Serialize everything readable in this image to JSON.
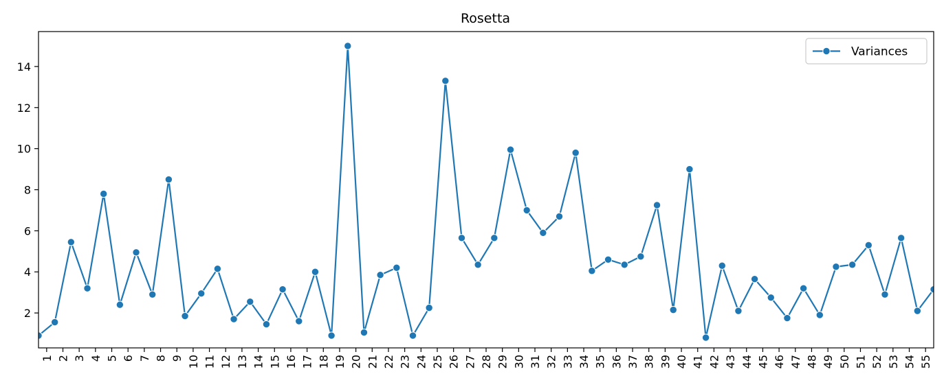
{
  "chart_data": {
    "type": "line",
    "title": "Rosetta",
    "xlabel": "",
    "ylabel": "",
    "categories": [
      "1",
      "2",
      "3",
      "4",
      "5",
      "6",
      "7",
      "8",
      "9",
      "10",
      "11",
      "12",
      "13",
      "14",
      "15",
      "16",
      "17",
      "18",
      "19",
      "20",
      "21",
      "22",
      "23",
      "24",
      "25",
      "26",
      "27",
      "28",
      "29",
      "30",
      "31",
      "32",
      "33",
      "34",
      "35",
      "36",
      "37",
      "38",
      "39",
      "40",
      "41",
      "42",
      "43",
      "44",
      "45",
      "46",
      "47",
      "48",
      "49",
      "50",
      "51",
      "52",
      "53",
      "54",
      "55"
    ],
    "series": [
      {
        "name": "Variances",
        "color": "#1f77b4",
        "marker": "circle",
        "x": [
          0,
          1,
          2,
          3,
          4,
          5,
          6,
          7,
          8,
          9,
          10,
          11,
          12,
          13,
          14,
          15,
          16,
          17,
          18,
          19,
          20,
          21,
          22,
          23,
          24,
          25,
          26,
          27,
          28,
          29,
          30,
          31,
          32,
          33,
          34,
          35,
          36,
          37,
          38,
          39,
          40,
          41,
          42,
          43,
          44,
          45,
          46,
          47,
          48,
          49,
          50,
          51,
          52,
          53,
          54,
          55
        ],
        "values": [
          0.9,
          1.55,
          5.45,
          3.2,
          7.8,
          2.4,
          4.95,
          2.9,
          8.5,
          1.85,
          2.95,
          4.15,
          1.7,
          2.55,
          1.45,
          3.15,
          1.6,
          4.0,
          0.9,
          15.0,
          1.05,
          3.85,
          4.2,
          0.9,
          2.25,
          13.3,
          5.65,
          4.35,
          5.65,
          9.95,
          7.0,
          5.9,
          6.7,
          9.8,
          4.05,
          4.6,
          4.35,
          4.75,
          7.25,
          2.15,
          9.0,
          0.8,
          4.3,
          2.1,
          3.65,
          2.75,
          1.75,
          3.2,
          1.9,
          4.25,
          4.35,
          5.3,
          2.9,
          5.65,
          2.1,
          3.15
        ]
      }
    ],
    "xlim": [
      0,
      55
    ],
    "ylim": [
      0.3,
      15.7
    ],
    "yticks": [
      2,
      4,
      6,
      8,
      10,
      12,
      14
    ],
    "grid": false,
    "legend": {
      "placement": "top-right",
      "entries": [
        "Variances"
      ]
    },
    "xtick_rotation": "vertical"
  }
}
